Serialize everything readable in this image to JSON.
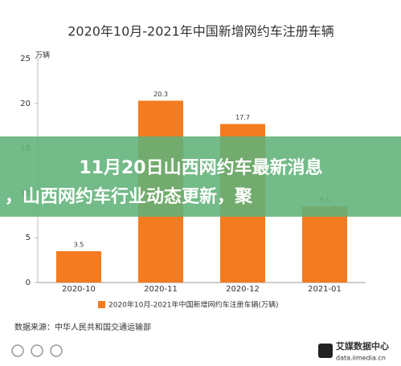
{
  "chart_data": {
    "type": "bar",
    "title": "2020年10月-2021年中国新增网约车注册车辆",
    "y_unit": "万辆",
    "categories": [
      "2020-10",
      "2020-11",
      "2020-12",
      "2021-01"
    ],
    "series": [
      {
        "name": "2020年10月-2021年中国新增网约车注册车辆(万辆)",
        "color": "#f47b20",
        "values": [
          3.5,
          20.3,
          17.7,
          8.5
        ]
      }
    ],
    "ylim": [
      0,
      25
    ],
    "yticks": [
      0,
      5,
      10,
      15,
      20,
      25
    ],
    "grid": false,
    "source": "数据来源：中华人民共和国交通运输部"
  },
  "logo": {
    "name": "艾媒数据中心",
    "url": "data.iimedia.cn"
  },
  "banner": {
    "lines": [
      "11月20日山西网约车最新消息",
      "，山西网约车行业动态更新，聚"
    ]
  }
}
